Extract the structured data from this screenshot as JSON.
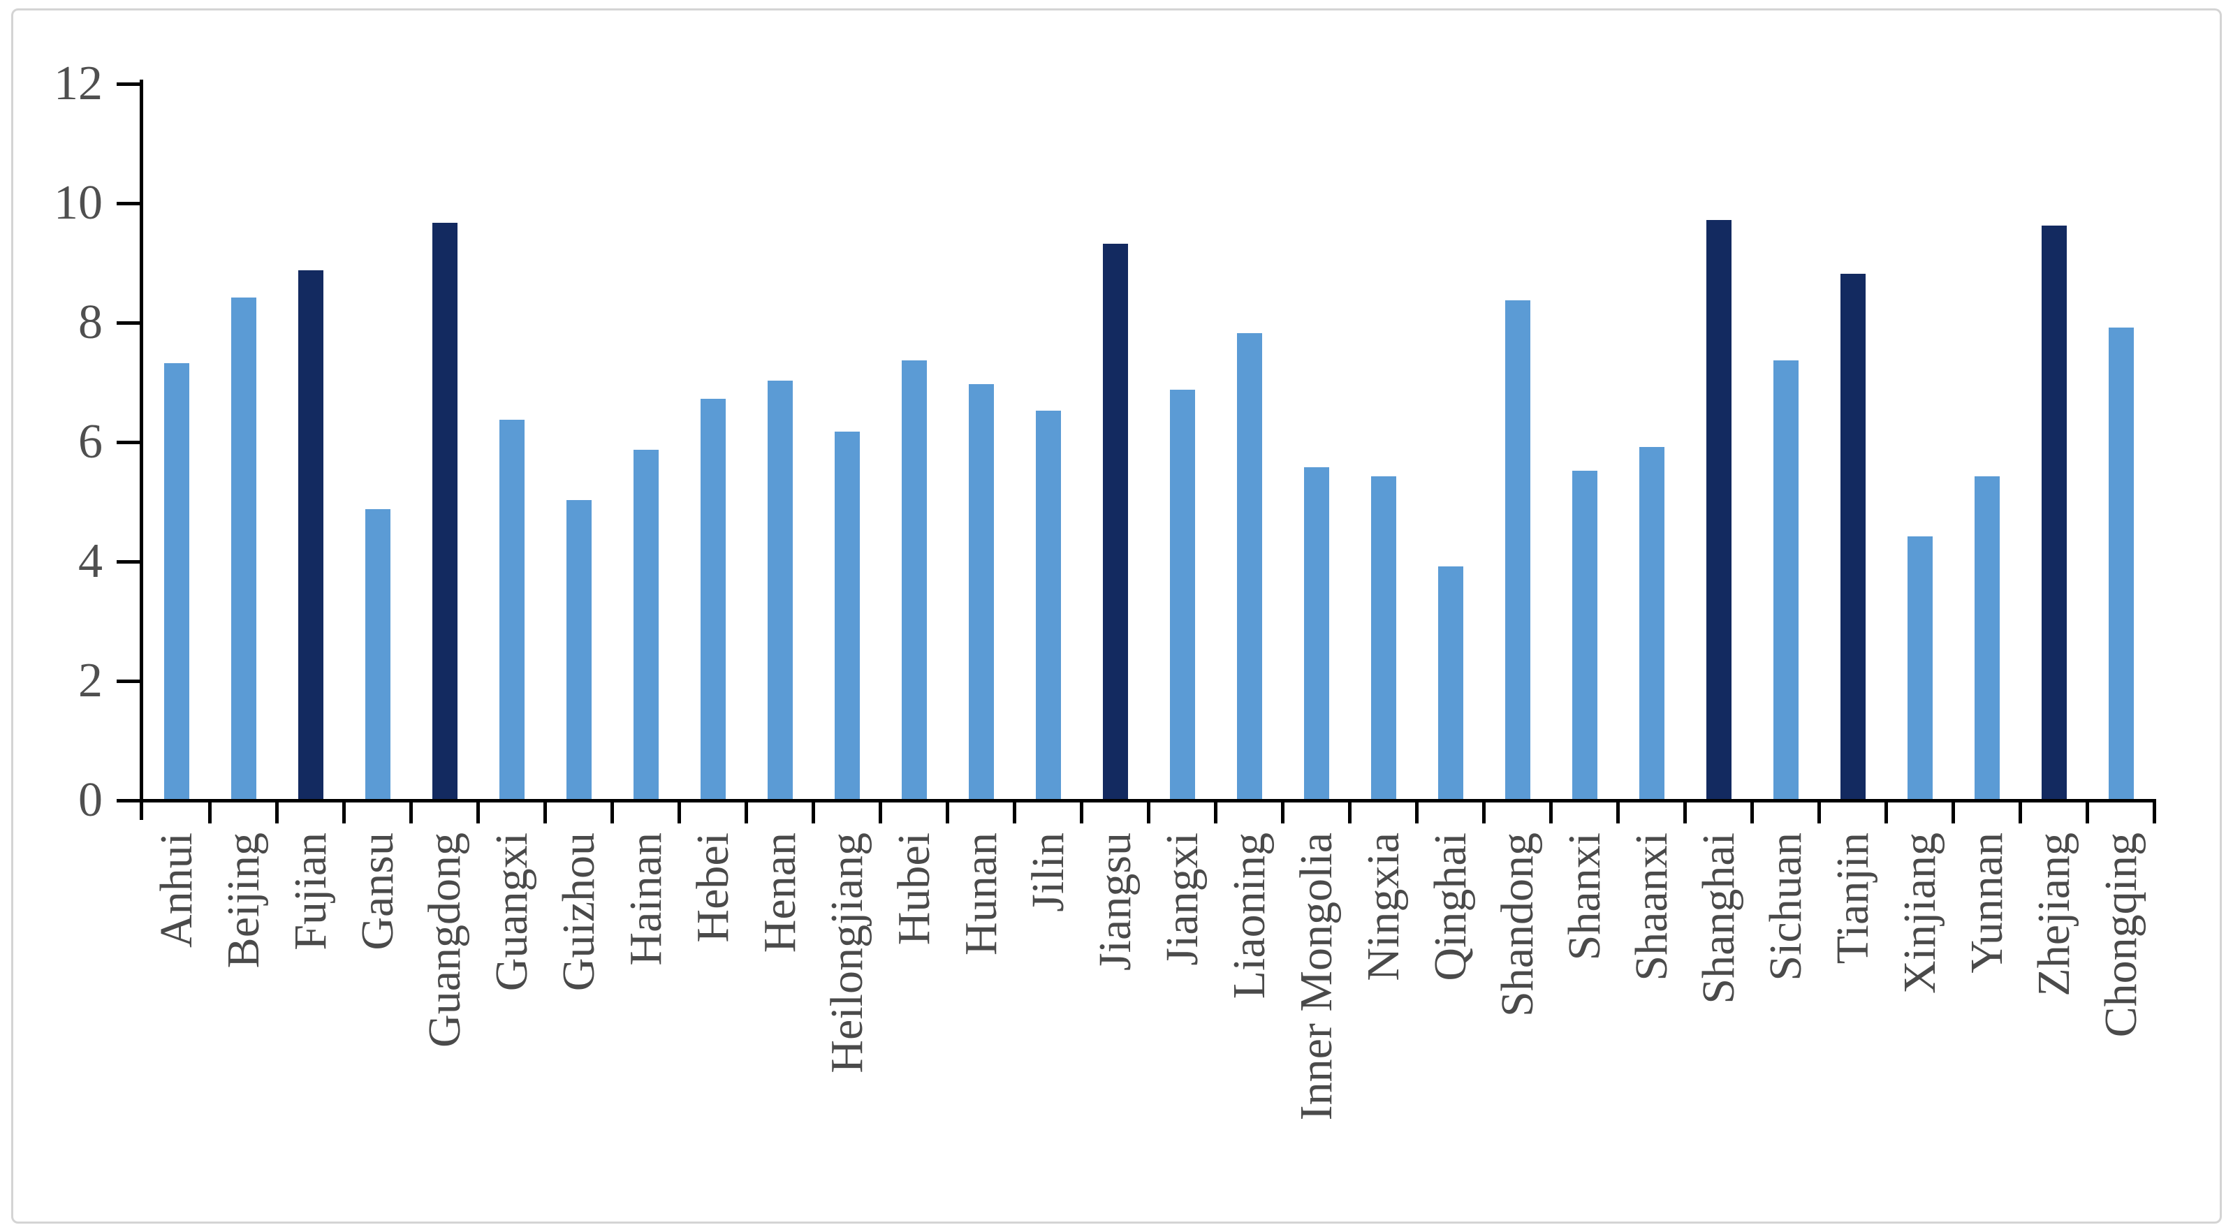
{
  "figure": {
    "background_color": "#FFFFFF",
    "border_color": "#D4D4D4"
  },
  "chart_data": {
    "type": "bar",
    "title": "",
    "xlabel": "",
    "ylabel": "",
    "categories": [
      "Anhui",
      "Beijing",
      "Fujian",
      "Gansu",
      "Guangdong",
      "Guangxi",
      "Guizhou",
      "Hainan",
      "Hebei",
      "Henan",
      "Heilongjiang",
      "Hubei",
      "Hunan",
      "Jilin",
      "Jiangsu",
      "Jiangxi",
      "Liaoning",
      "Inner Mongolia",
      "Ningxia",
      "Qinghai",
      "Shandong",
      "Shanxi",
      "Shaanxi",
      "Shanghai",
      "Sichuan",
      "Tianjin",
      "Xinjiang",
      "Yunnan",
      "Zhejiang",
      "Chongqing"
    ],
    "values": [
      7.3,
      8.4,
      8.85,
      4.85,
      9.65,
      6.35,
      5.0,
      5.85,
      6.7,
      7.0,
      6.15,
      7.35,
      6.95,
      6.5,
      9.3,
      6.85,
      7.8,
      5.55,
      5.4,
      3.9,
      8.35,
      5.5,
      5.9,
      9.7,
      7.35,
      8.8,
      4.4,
      5.4,
      9.6,
      7.9
    ],
    "highlighted_categories": [
      "Fujian",
      "Guangdong",
      "Jiangsu",
      "Shanghai",
      "Tianjin",
      "Zhejiang"
    ],
    "bar_color_default": "#5B9BD5",
    "bar_color_highlight": "#132A60",
    "axis_color": "#000000",
    "tick_label_color": "#4F4F4F",
    "ylim": [
      0,
      12
    ],
    "yticks": [
      "0",
      "2",
      "4",
      "6",
      "8",
      "10",
      "12"
    ],
    "grid": false,
    "legend_position": "none"
  }
}
